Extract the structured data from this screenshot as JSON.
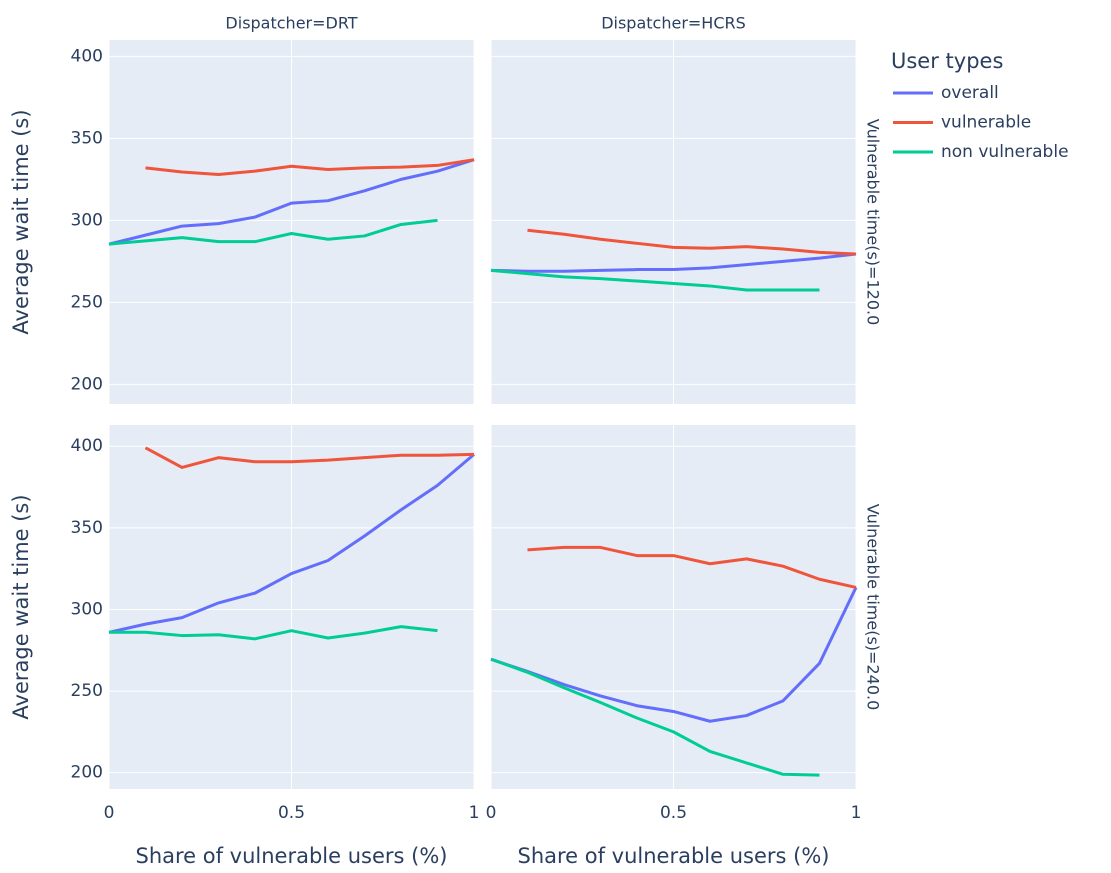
{
  "chart_data": [
    {
      "type": "line",
      "title": "Dispatcher=DRT",
      "y_label": "Average wait time (s)",
      "legend_title": "User types",
      "xlim": [
        0,
        1
      ],
      "xticks": [
        0,
        0.5,
        1
      ],
      "ylim": [
        188,
        410
      ],
      "yticks": [
        200,
        250,
        300,
        350,
        400
      ],
      "grid": true,
      "series": [
        {
          "name": "overall",
          "color": "#636efa",
          "x": [
            0,
            0.1,
            0.2,
            0.3,
            0.4,
            0.5,
            0.6,
            0.7,
            0.8,
            0.9,
            1
          ],
          "values": [
            285.5,
            291,
            296.5,
            298,
            302,
            310.5,
            312,
            318,
            325,
            330,
            337
          ]
        },
        {
          "name": "vulnerable",
          "color": "#ef553b",
          "x": [
            0.1,
            0.2,
            0.3,
            0.4,
            0.5,
            0.6,
            0.7,
            0.8,
            0.9,
            1
          ],
          "values": [
            332,
            329.5,
            328,
            330,
            333,
            331,
            332,
            332.5,
            333.5,
            337
          ]
        },
        {
          "name": "non vulnerable",
          "color": "#00cc96",
          "x": [
            0,
            0.1,
            0.2,
            0.3,
            0.4,
            0.5,
            0.6,
            0.7,
            0.8,
            0.9
          ],
          "values": [
            285.5,
            287.5,
            289.5,
            287,
            287,
            292,
            288.5,
            290.5,
            297.5,
            300
          ]
        }
      ]
    },
    {
      "type": "line",
      "title": "Dispatcher=HCRS",
      "row_label": "Vulnerable time(s)=120.0",
      "xlim": [
        0,
        1
      ],
      "xticks": [
        0,
        0.5,
        1
      ],
      "ylim": [
        188,
        410
      ],
      "yticks": [
        200,
        250,
        300,
        350,
        400
      ],
      "grid": true,
      "series": [
        {
          "name": "overall",
          "color": "#636efa",
          "x": [
            0,
            0.1,
            0.2,
            0.3,
            0.4,
            0.5,
            0.6,
            0.7,
            0.8,
            0.9,
            1
          ],
          "values": [
            269.5,
            269,
            269,
            269.5,
            270,
            270,
            271,
            273,
            275,
            277,
            279.5
          ]
        },
        {
          "name": "vulnerable",
          "color": "#ef553b",
          "x": [
            0.1,
            0.2,
            0.3,
            0.4,
            0.5,
            0.6,
            0.7,
            0.8,
            0.9,
            1
          ],
          "values": [
            294,
            291.5,
            288.5,
            286,
            283.5,
            283,
            284,
            282.5,
            280.5,
            279.5
          ]
        },
        {
          "name": "non vulnerable",
          "color": "#00cc96",
          "x": [
            0,
            0.1,
            0.2,
            0.3,
            0.4,
            0.5,
            0.6,
            0.7,
            0.8,
            0.9
          ],
          "values": [
            269.5,
            267.5,
            265.5,
            264.5,
            263,
            261.5,
            260,
            257.5,
            257.5,
            257.5
          ]
        }
      ]
    },
    {
      "type": "line",
      "x_label": "Share of vulnerable users (%)",
      "y_label": "Average wait time (s)",
      "xlim": [
        0,
        1
      ],
      "xticks": [
        0,
        0.5,
        1
      ],
      "ylim": [
        190,
        413
      ],
      "yticks": [
        200,
        250,
        300,
        350,
        400
      ],
      "grid": true,
      "series": [
        {
          "name": "overall",
          "color": "#636efa",
          "x": [
            0,
            0.1,
            0.2,
            0.3,
            0.4,
            0.5,
            0.6,
            0.7,
            0.8,
            0.9,
            1
          ],
          "values": [
            286,
            291,
            295,
            304,
            310,
            322,
            330,
            345,
            361,
            376,
            395
          ]
        },
        {
          "name": "vulnerable",
          "color": "#ef553b",
          "x": [
            0.1,
            0.2,
            0.3,
            0.4,
            0.5,
            0.6,
            0.7,
            0.8,
            0.9,
            1
          ],
          "values": [
            399,
            387,
            393,
            390.5,
            390.5,
            391.5,
            393,
            394.5,
            394.5,
            395
          ]
        },
        {
          "name": "non vulnerable",
          "color": "#00cc96",
          "x": [
            0,
            0.1,
            0.2,
            0.3,
            0.4,
            0.5,
            0.6,
            0.7,
            0.8,
            0.9
          ],
          "values": [
            286,
            286,
            284,
            284.5,
            282,
            287,
            282.5,
            285.5,
            289.5,
            287
          ]
        }
      ]
    },
    {
      "type": "line",
      "x_label": "Share of vulnerable users (%)",
      "row_label": "Vulnerable time(s)=240.0",
      "xlim": [
        0,
        1
      ],
      "xticks": [
        0,
        0.5,
        1
      ],
      "ylim": [
        190,
        413
      ],
      "yticks": [
        200,
        250,
        300,
        350,
        400
      ],
      "grid": true,
      "series": [
        {
          "name": "overall",
          "color": "#636efa",
          "x": [
            0,
            0.1,
            0.2,
            0.3,
            0.4,
            0.5,
            0.6,
            0.7,
            0.8,
            0.9,
            1
          ],
          "values": [
            269.5,
            262,
            254,
            247,
            241,
            237.5,
            231.5,
            235,
            244,
            267,
            313.5
          ]
        },
        {
          "name": "vulnerable",
          "color": "#ef553b",
          "x": [
            0.1,
            0.2,
            0.3,
            0.4,
            0.5,
            0.6,
            0.7,
            0.8,
            0.9,
            1
          ],
          "values": [
            336.5,
            338,
            338,
            333,
            333,
            328,
            331,
            326.5,
            318.5,
            313.5
          ]
        },
        {
          "name": "non vulnerable",
          "color": "#00cc96",
          "x": [
            0,
            0.1,
            0.2,
            0.3,
            0.4,
            0.5,
            0.6,
            0.7,
            0.8,
            0.9
          ],
          "values": [
            269.5,
            261.5,
            252,
            243,
            233.5,
            225,
            213,
            206,
            199,
            198.5
          ]
        }
      ]
    }
  ]
}
